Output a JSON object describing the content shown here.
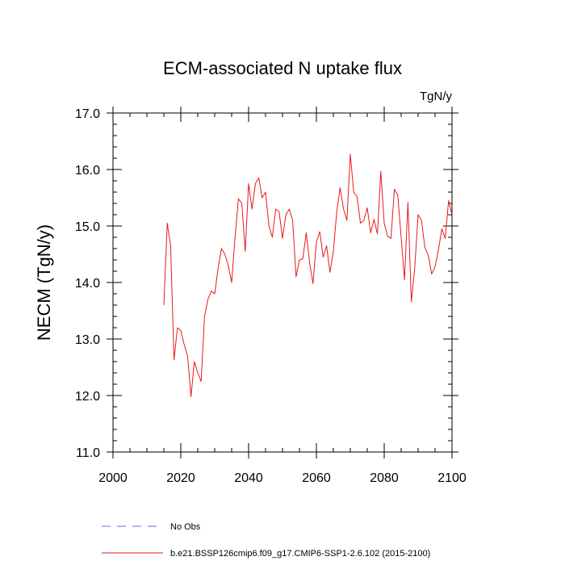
{
  "chart_data": {
    "type": "line",
    "title": "ECM-associated N uptake flux",
    "units_label": "TgN/y",
    "ylabel": "NECM  (TgN/y)",
    "xlabel": "",
    "xlim": [
      2000,
      2100
    ],
    "ylim": [
      11.0,
      17.0
    ],
    "x_ticks": [
      2000,
      2020,
      2040,
      2060,
      2080,
      2100
    ],
    "x_tick_labels": [
      "2000",
      "2020",
      "2040",
      "2060",
      "2080",
      "2100"
    ],
    "y_ticks": [
      11.0,
      12.0,
      13.0,
      14.0,
      15.0,
      16.0,
      17.0
    ],
    "y_tick_labels": [
      "11.0",
      "12.0",
      "13.0",
      "14.0",
      "15.0",
      "16.0",
      "17.0"
    ],
    "grid": false,
    "legend": [
      {
        "label": "No Obs",
        "style": "dashed",
        "color": "#6a6ae0"
      },
      {
        "label": "b.e21.BSSP126cmip6.f09_g17.CMIP6-SSP1-2.6.102 (2015-2100)",
        "style": "solid",
        "color": "#e8191c"
      }
    ],
    "series": [
      {
        "name": "b.e21.BSSP126cmip6.f09_g17.CMIP6-SSP1-2.6.102 (2015-2100)",
        "color": "#e8191c",
        "x": [
          2015,
          2016,
          2017,
          2018,
          2019,
          2020,
          2021,
          2022,
          2023,
          2024,
          2025,
          2026,
          2027,
          2028,
          2029,
          2030,
          2031,
          2032,
          2033,
          2034,
          2035,
          2036,
          2037,
          2038,
          2039,
          2040,
          2041,
          2042,
          2043,
          2044,
          2045,
          2046,
          2047,
          2048,
          2049,
          2050,
          2051,
          2052,
          2053,
          2054,
          2055,
          2056,
          2057,
          2058,
          2059,
          2060,
          2061,
          2062,
          2063,
          2064,
          2065,
          2066,
          2067,
          2068,
          2069,
          2070,
          2071,
          2072,
          2073,
          2074,
          2075,
          2076,
          2077,
          2078,
          2079,
          2080,
          2081,
          2082,
          2083,
          2084,
          2085,
          2086,
          2087,
          2088,
          2089,
          2090,
          2091,
          2092,
          2093,
          2094,
          2095,
          2096,
          2097,
          2098,
          2099,
          2100
        ],
        "values": [
          13.6,
          15.05,
          14.65,
          12.63,
          13.2,
          13.15,
          12.9,
          12.7,
          11.98,
          12.6,
          12.4,
          12.25,
          13.4,
          13.7,
          13.85,
          13.8,
          14.25,
          14.6,
          14.5,
          14.3,
          14.0,
          14.8,
          15.48,
          15.4,
          14.55,
          15.75,
          15.3,
          15.75,
          15.85,
          15.5,
          15.6,
          15.0,
          14.8,
          15.3,
          15.25,
          14.78,
          15.2,
          15.3,
          15.1,
          14.1,
          14.4,
          14.42,
          14.88,
          14.35,
          13.98,
          14.72,
          14.9,
          14.45,
          14.65,
          14.18,
          14.55,
          15.25,
          15.68,
          15.3,
          15.1,
          16.27,
          15.6,
          15.52,
          15.05,
          15.1,
          15.32,
          14.88,
          15.12,
          14.86,
          15.97,
          15.05,
          14.82,
          14.78,
          15.65,
          15.55,
          14.8,
          14.05,
          15.42,
          13.66,
          14.25,
          15.2,
          15.1,
          14.62,
          14.48,
          14.15,
          14.28,
          14.58,
          14.95,
          14.78,
          15.45,
          15.2
        ]
      }
    ]
  }
}
